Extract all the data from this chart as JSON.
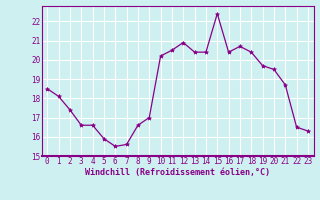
{
  "x": [
    0,
    1,
    2,
    3,
    4,
    5,
    6,
    7,
    8,
    9,
    10,
    11,
    12,
    13,
    14,
    15,
    16,
    17,
    18,
    19,
    20,
    21,
    22,
    23
  ],
  "y": [
    18.5,
    18.1,
    17.4,
    16.6,
    16.6,
    15.9,
    15.5,
    15.6,
    16.6,
    17.0,
    20.2,
    20.5,
    20.9,
    20.4,
    20.4,
    22.4,
    20.4,
    20.7,
    20.4,
    19.7,
    19.5,
    18.7,
    16.5,
    16.3
  ],
  "line_color": "#880088",
  "marker": "*",
  "marker_size": 3,
  "bg_color": "#cff0f0",
  "grid_color": "#ffffff",
  "xlabel": "Windchill (Refroidissement éolien,°C)",
  "tick_color": "#880088",
  "spine_color": "#880088",
  "ylim": [
    15,
    22.8
  ],
  "xlim": [
    -0.5,
    23.5
  ],
  "yticks": [
    15,
    16,
    17,
    18,
    19,
    20,
    21,
    22
  ],
  "xticks": [
    0,
    1,
    2,
    3,
    4,
    5,
    6,
    7,
    8,
    9,
    10,
    11,
    12,
    13,
    14,
    15,
    16,
    17,
    18,
    19,
    20,
    21,
    22,
    23
  ],
  "tick_fontsize": 5.5,
  "xlabel_fontsize": 6.0
}
